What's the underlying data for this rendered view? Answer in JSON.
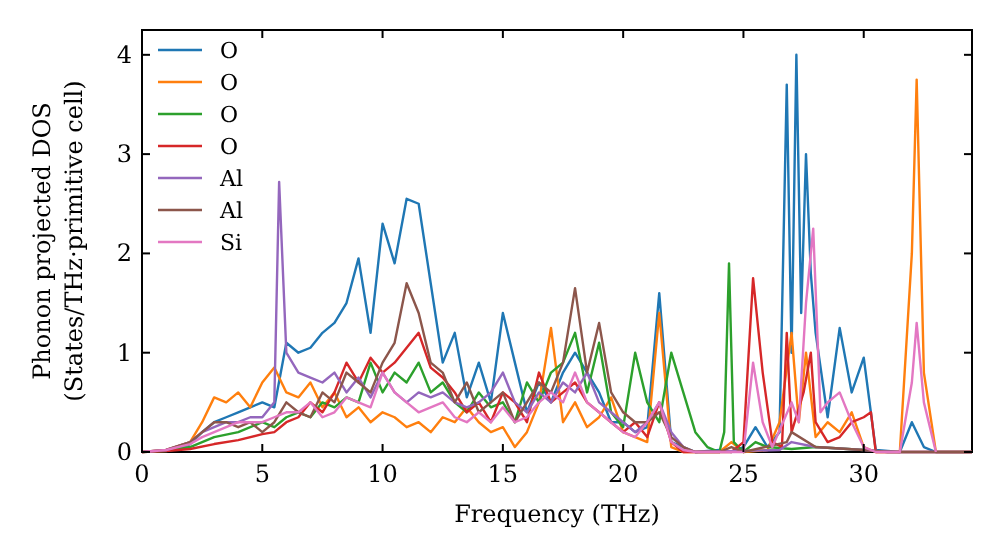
{
  "chart_data": {
    "type": "line",
    "xlabel": "Frequency (THz)",
    "ylabel": "Phonon projected DOS\n(States/THz·primitive cell)",
    "xlim": [
      0,
      34.5
    ],
    "ylim": [
      0,
      4.25
    ],
    "xticks": [
      0,
      5,
      10,
      15,
      20,
      25,
      30
    ],
    "yticks": [
      0,
      1,
      2,
      3,
      4
    ],
    "legend": "top left",
    "grid": false,
    "marker": "none",
    "line_style": "solid",
    "series": [
      {
        "name": "O",
        "color": "#1f77b4",
        "x": [
          1.5,
          2,
          2.5,
          3,
          3.5,
          4,
          4.5,
          5,
          5.5,
          6,
          6.5,
          7,
          7.5,
          8,
          8.5,
          9,
          9.5,
          10,
          10.5,
          11,
          11.5,
          12,
          12.5,
          13,
          13.5,
          14,
          14.5,
          15,
          15.5,
          16,
          16.5,
          17,
          17.5,
          18,
          18.5,
          19,
          19.5,
          20,
          20.5,
          21,
          21.5,
          22,
          22.5,
          23,
          24,
          24.5,
          25,
          25.5,
          26,
          26.5,
          26.8,
          27,
          27.2,
          27.4,
          27.6,
          27.8,
          28,
          28.5,
          29,
          29.5,
          30,
          30.5,
          31.5,
          32,
          32.5,
          33,
          34.5
        ],
        "values": [
          0.03,
          0.08,
          0.2,
          0.3,
          0.35,
          0.4,
          0.45,
          0.5,
          0.45,
          1.1,
          1,
          1.05,
          1.2,
          1.3,
          1.5,
          1.95,
          1.2,
          2.3,
          1.9,
          2.55,
          2.5,
          1.7,
          0.9,
          1.2,
          0.55,
          0.9,
          0.5,
          1.4,
          0.9,
          0.4,
          0.7,
          0.5,
          0.8,
          1,
          0.8,
          0.6,
          0.3,
          0.3,
          0.2,
          0.25,
          1.6,
          0.1,
          0.05,
          0,
          0.02,
          0,
          0.05,
          0.25,
          0.05,
          0.2,
          3.7,
          1,
          4,
          1.4,
          3,
          1.8,
          1.2,
          0.35,
          1.25,
          0.6,
          0.95,
          0.02,
          0,
          0.3,
          0.05,
          0,
          0
        ]
      },
      {
        "name": "O",
        "color": "#ff7f0e",
        "x": [
          0,
          1,
          2,
          2.5,
          3,
          3.5,
          4,
          4.5,
          5,
          5.5,
          6,
          6.5,
          7,
          7.5,
          8,
          8.5,
          9,
          9.5,
          10,
          10.5,
          11,
          11.5,
          12,
          12.5,
          13,
          13.5,
          14,
          14.5,
          15,
          15.5,
          16,
          16.5,
          17,
          17.5,
          18,
          18.5,
          19,
          19.5,
          20,
          20.5,
          21,
          21.5,
          22,
          22.5,
          24,
          24.5,
          25,
          26,
          26.5,
          27,
          27.3,
          27.6,
          28,
          28.5,
          29,
          29.5,
          30,
          30.5,
          31.5,
          32,
          32.2,
          32.5,
          33,
          34.5
        ],
        "values": [
          0,
          0.02,
          0.1,
          0.3,
          0.55,
          0.5,
          0.6,
          0.45,
          0.7,
          0.85,
          0.6,
          0.55,
          0.7,
          0.45,
          0.6,
          0.35,
          0.45,
          0.3,
          0.4,
          0.35,
          0.25,
          0.3,
          0.2,
          0.35,
          0.3,
          0.45,
          0.3,
          0.2,
          0.25,
          0.05,
          0.2,
          0.5,
          1.25,
          0.3,
          0.5,
          0.25,
          0.35,
          0.55,
          0.2,
          0.15,
          0.1,
          1.4,
          0.05,
          0,
          0,
          0.1,
          0,
          0.02,
          0.3,
          1.2,
          0.3,
          1,
          0.15,
          0.3,
          0.2,
          0.4,
          0.05,
          0,
          0,
          2,
          3.75,
          0.8,
          0,
          0
        ]
      },
      {
        "name": "O",
        "color": "#2ca02c",
        "x": [
          0,
          1,
          2,
          3,
          4,
          5,
          5.5,
          6,
          6.5,
          7,
          7.5,
          8,
          8.5,
          9,
          9.5,
          10,
          10.5,
          11,
          11.5,
          12,
          12.5,
          13,
          13.5,
          14,
          14.5,
          15,
          15.5,
          16,
          16.5,
          17,
          17.5,
          18,
          18.5,
          19,
          19.5,
          20,
          20.5,
          21,
          21.5,
          22,
          22.5,
          23,
          23.5,
          24,
          24.2,
          24.4,
          24.6,
          25,
          25.5,
          26,
          27,
          28,
          30
        ],
        "values": [
          0,
          0.01,
          0.05,
          0.15,
          0.2,
          0.3,
          0.25,
          0.35,
          0.4,
          0.35,
          0.5,
          0.45,
          0.55,
          0.5,
          0.9,
          0.6,
          0.8,
          0.7,
          0.9,
          0.6,
          0.7,
          0.5,
          0.4,
          0.6,
          0.45,
          0.5,
          0.3,
          0.7,
          0.5,
          0.8,
          0.9,
          1.2,
          0.6,
          1.1,
          0.4,
          0.25,
          1,
          0.5,
          0.3,
          1,
          0.6,
          0.2,
          0.05,
          0,
          0.2,
          1.9,
          0.1,
          0,
          0.1,
          0.05,
          0.03,
          0.05,
          0.02
        ]
      },
      {
        "name": "O",
        "color": "#d62728",
        "x": [
          0,
          1,
          2,
          3,
          4,
          5,
          5.5,
          6,
          6.5,
          7,
          7.5,
          8,
          8.5,
          9,
          9.5,
          10,
          10.5,
          11,
          11.5,
          12,
          12.5,
          13,
          13.5,
          14,
          14.5,
          15,
          15.5,
          16,
          16.5,
          17,
          17.5,
          18,
          18.5,
          19,
          19.5,
          20,
          20.5,
          21,
          21.5,
          22,
          22.5,
          24.5,
          25,
          25.4,
          25.8,
          26.2,
          26.6,
          26.8,
          27,
          27.5,
          27.8,
          28,
          28.5,
          29,
          29.5,
          30,
          30.3,
          30.5,
          34.5
        ],
        "values": [
          0,
          0.01,
          0.03,
          0.08,
          0.12,
          0.18,
          0.2,
          0.3,
          0.35,
          0.5,
          0.4,
          0.6,
          0.9,
          0.7,
          0.95,
          0.8,
          0.9,
          1.05,
          1.2,
          0.85,
          0.75,
          0.6,
          0.4,
          0.5,
          0.3,
          0.6,
          0.5,
          0.3,
          0.8,
          0.5,
          0.6,
          0.7,
          0.5,
          0.4,
          0.3,
          0.2,
          0.3,
          0.15,
          0.5,
          0.1,
          0,
          0,
          0.1,
          1.75,
          0.8,
          0.1,
          0.05,
          1.2,
          0.2,
          0.6,
          1,
          0.3,
          0.1,
          0.15,
          0.3,
          0.35,
          0.4,
          0,
          0
        ]
      },
      {
        "name": "Al",
        "color": "#9467bd",
        "x": [
          0,
          1,
          2,
          2.5,
          3,
          3.5,
          4,
          4.5,
          5,
          5.5,
          5.7,
          6,
          6.5,
          7,
          7.5,
          8,
          8.5,
          9,
          9.5,
          10,
          10.5,
          11,
          11.5,
          12,
          12.5,
          13,
          13.5,
          14,
          14.5,
          15,
          15.5,
          16,
          16.5,
          17,
          17.5,
          18,
          18.5,
          19,
          19.5,
          20,
          20.5,
          21,
          21.5,
          22,
          22.5,
          23,
          26.5,
          27,
          28,
          30,
          31,
          34.5
        ],
        "values": [
          0,
          0.02,
          0.1,
          0.2,
          0.25,
          0.3,
          0.3,
          0.35,
          0.35,
          0.5,
          2.72,
          1,
          0.8,
          0.75,
          0.7,
          0.8,
          0.6,
          0.75,
          0.55,
          0.8,
          0.6,
          0.5,
          0.6,
          0.55,
          0.6,
          0.5,
          0.45,
          0.5,
          0.6,
          0.8,
          0.5,
          0.4,
          0.6,
          0.5,
          0.7,
          0.6,
          0.8,
          0.5,
          0.4,
          0.3,
          0.2,
          0.3,
          0.5,
          0.2,
          0.05,
          0,
          0.02,
          0.1,
          0.05,
          0.02,
          0,
          0
        ]
      },
      {
        "name": "Al",
        "color": "#8c564b",
        "x": [
          0,
          1,
          2,
          3,
          3.5,
          4,
          4.5,
          5,
          5.5,
          6,
          6.5,
          7,
          7.5,
          8,
          8.5,
          9,
          9.5,
          10,
          10.5,
          11,
          11.5,
          12,
          12.5,
          13,
          13.5,
          14,
          14.5,
          15,
          15.5,
          16,
          16.5,
          17,
          17.5,
          18,
          18.5,
          19,
          19.5,
          20,
          20.5,
          21,
          21.5,
          22,
          22.5,
          23,
          24,
          24.5,
          25,
          26.8,
          27,
          28,
          30,
          31,
          34.5
        ],
        "values": [
          0,
          0.02,
          0.1,
          0.3,
          0.3,
          0.25,
          0.3,
          0.2,
          0.3,
          0.5,
          0.4,
          0.35,
          0.6,
          0.5,
          0.8,
          0.7,
          0.6,
          0.9,
          1.1,
          1.7,
          1.4,
          0.9,
          0.8,
          0.5,
          0.7,
          0.4,
          0.5,
          0.6,
          0.3,
          0.5,
          0.7,
          0.6,
          0.9,
          1.65,
          0.8,
          1.3,
          0.6,
          0.4,
          0.3,
          0.3,
          0.4,
          0.15,
          0.05,
          0,
          0,
          0.05,
          0,
          0.1,
          0.2,
          0.05,
          0.02,
          0,
          0
        ]
      },
      {
        "name": "Si",
        "color": "#e377c2",
        "x": [
          0,
          1,
          2,
          2.5,
          3,
          3.5,
          4,
          4.5,
          5,
          5.5,
          6,
          6.5,
          7,
          7.5,
          8,
          8.5,
          9,
          9.5,
          10,
          10.5,
          11,
          11.5,
          12,
          12.5,
          13,
          13.5,
          14,
          14.5,
          15,
          15.5,
          16,
          16.5,
          17,
          17.5,
          18,
          18.5,
          19,
          19.5,
          20,
          20.5,
          21,
          21.5,
          22,
          22.5,
          23,
          25,
          25.4,
          25.8,
          26.2,
          27,
          27.3,
          27.6,
          27.9,
          28.2,
          28.5,
          29,
          29.5,
          30,
          30.5,
          31.5,
          32,
          32.2,
          32.5,
          33
        ],
        "values": [
          0,
          0.02,
          0.08,
          0.15,
          0.2,
          0.25,
          0.3,
          0.3,
          0.3,
          0.35,
          0.4,
          0.4,
          0.5,
          0.35,
          0.4,
          0.55,
          0.5,
          0.45,
          0.8,
          0.6,
          0.5,
          0.4,
          0.45,
          0.5,
          0.35,
          0.3,
          0.4,
          0.3,
          0.45,
          0.3,
          0.35,
          0.5,
          0.6,
          0.5,
          0.8,
          0.5,
          0.4,
          0.3,
          0.2,
          0.15,
          0.3,
          0.5,
          0.1,
          0.02,
          0,
          0,
          0.9,
          0.3,
          0.05,
          0.5,
          0.3,
          1.5,
          2.25,
          0.4,
          0.5,
          0.6,
          0.3,
          0.05,
          0,
          0,
          0.7,
          1.3,
          0.5,
          0
        ]
      }
    ]
  }
}
